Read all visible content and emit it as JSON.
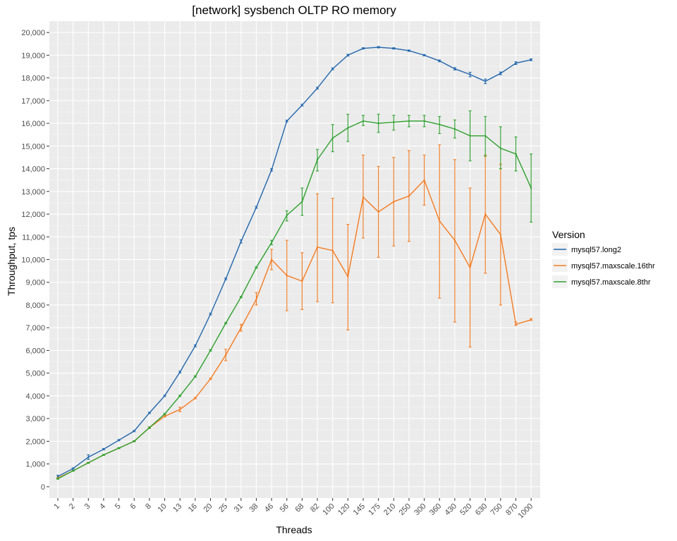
{
  "chart_data": {
    "type": "line",
    "title": "[network] sysbench OLTP RO memory",
    "xlabel": "Threads",
    "ylabel": "Throughput, tps",
    "categories": [
      "1",
      "2",
      "3",
      "4",
      "5",
      "6",
      "8",
      "10",
      "13",
      "16",
      "20",
      "25",
      "31",
      "38",
      "46",
      "56",
      "68",
      "82",
      "100",
      "120",
      "145",
      "175",
      "210",
      "250",
      "300",
      "360",
      "430",
      "520",
      "630",
      "750",
      "870",
      "1000"
    ],
    "ylim": [
      -500,
      20500
    ],
    "yticks": [
      0,
      1000,
      2000,
      3000,
      4000,
      5000,
      6000,
      7000,
      8000,
      9000,
      10000,
      11000,
      12000,
      13000,
      14000,
      15000,
      16000,
      17000,
      18000,
      19000,
      20000
    ],
    "ytick_labels": [
      "0",
      "1,000",
      "2,000",
      "3,000",
      "4,000",
      "5,000",
      "6,000",
      "7,000",
      "8,000",
      "9,000",
      "10,000",
      "11,000",
      "12,000",
      "13,000",
      "14,000",
      "15,000",
      "16,000",
      "17,000",
      "18,000",
      "19,000",
      "20,000"
    ],
    "grid": true,
    "legend": {
      "title": "Version",
      "position": "right"
    },
    "series": [
      {
        "name": "mysql57.long2",
        "color": "#2166ac",
        "values": [
          450,
          800,
          1300,
          1650,
          2050,
          2450,
          3250,
          4000,
          5050,
          6200,
          7600,
          9150,
          10800,
          12300,
          13950,
          16100,
          16800,
          17550,
          18400,
          19000,
          19300,
          19350,
          19300,
          19200,
          19000,
          18750,
          18400,
          18150,
          17850,
          18200,
          18650,
          18800
        ],
        "err_low": [
          400,
          770,
          1200,
          1620,
          2020,
          2420,
          3220,
          3970,
          5010,
          6160,
          7560,
          9110,
          10730,
          12260,
          13900,
          16060,
          16760,
          17510,
          18360,
          18960,
          19270,
          19320,
          19270,
          19170,
          18970,
          18710,
          18350,
          18050,
          17750,
          18140,
          18590,
          18760
        ],
        "err_high": [
          500,
          830,
          1400,
          1680,
          2080,
          2480,
          3280,
          4030,
          5090,
          6240,
          7640,
          9190,
          10870,
          12340,
          14000,
          16140,
          16840,
          17590,
          18440,
          19040,
          19330,
          19380,
          19330,
          19230,
          19030,
          18790,
          18450,
          18250,
          17950,
          18260,
          18710,
          18840
        ]
      },
      {
        "name": "mysql57.maxscale.16thr",
        "color": "#f47a1f",
        "values": [
          380,
          700,
          1050,
          1400,
          1700,
          2000,
          2600,
          3100,
          3400,
          3900,
          4750,
          5800,
          7000,
          8250,
          10000,
          9300,
          9050,
          10550,
          10400,
          9250,
          12750,
          12100,
          12550,
          12800,
          13500,
          11700,
          10850,
          9650,
          12000,
          11100,
          7150,
          7350
        ],
        "err_low": [
          360,
          680,
          1030,
          1380,
          1680,
          1980,
          2560,
          3070,
          3300,
          3870,
          4720,
          5550,
          6850,
          8000,
          9550,
          7750,
          7800,
          8150,
          8100,
          6900,
          10950,
          10100,
          10600,
          10800,
          12400,
          8300,
          7250,
          6150,
          9400,
          8000,
          7100,
          7320
        ],
        "err_high": [
          400,
          720,
          1070,
          1420,
          1720,
          2020,
          2640,
          3130,
          3500,
          3930,
          4780,
          6050,
          7150,
          8550,
          10450,
          10850,
          10300,
          12900,
          12700,
          11550,
          14600,
          14100,
          14500,
          14800,
          14600,
          15050,
          14400,
          13150,
          14600,
          14200,
          7250,
          7400
        ]
      },
      {
        "name": "mysql57.maxscale.8thr",
        "color": "#2ca02c",
        "values": [
          350,
          700,
          1050,
          1400,
          1700,
          2000,
          2600,
          3200,
          4000,
          4850,
          6000,
          7200,
          8350,
          9650,
          10750,
          11950,
          12550,
          14400,
          15350,
          15800,
          16100,
          16000,
          16050,
          16100,
          16100,
          15950,
          15750,
          15450,
          15450,
          14900,
          14650,
          13150
        ],
        "err_low": [
          330,
          680,
          1030,
          1380,
          1680,
          1980,
          2570,
          3170,
          3970,
          4820,
          5970,
          7170,
          8320,
          9620,
          10650,
          11700,
          11950,
          13900,
          14750,
          15200,
          15900,
          15600,
          15700,
          15850,
          15850,
          15550,
          15350,
          14350,
          14550,
          14000,
          13900,
          11650
        ],
        "err_high": [
          370,
          720,
          1070,
          1420,
          1720,
          2020,
          2630,
          3230,
          4030,
          4880,
          6030,
          7230,
          8380,
          9680,
          10850,
          12150,
          13150,
          14850,
          15950,
          16400,
          16350,
          16400,
          16350,
          16350,
          16350,
          16300,
          16150,
          16550,
          16300,
          15850,
          15400,
          14650
        ]
      }
    ]
  }
}
